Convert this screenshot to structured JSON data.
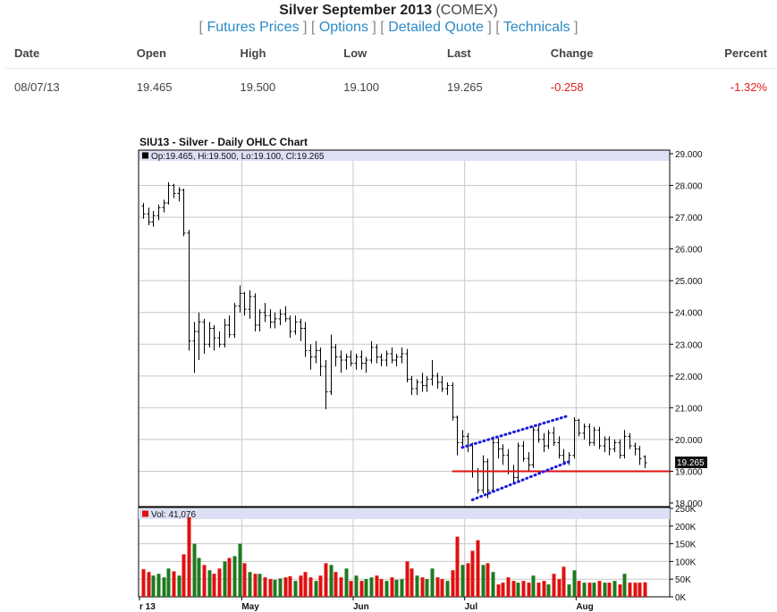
{
  "header": {
    "title_bold": "Silver September 2013",
    "title_rest": "(COMEX)",
    "links": [
      "Futures Prices",
      "Options",
      "Detailed Quote",
      "Technicals"
    ]
  },
  "quote_table": {
    "columns": [
      "Date",
      "Open",
      "High",
      "Low",
      "Last",
      "Change",
      "Percent"
    ],
    "row": {
      "date": "08/07/13",
      "open": "19.465",
      "high": "19.500",
      "low": "19.100",
      "last": "19.265",
      "change": "-0.258",
      "percent": "-1.32%"
    }
  },
  "chart_data": {
    "type": "ohlc",
    "title": "SIU13 - Silver - Daily OHLC Chart",
    "ohlc_label": "Op:19.465, Hi:19.500, Lo:19.100, Cl:19.265",
    "volume_label": "Vol: 41,076",
    "last_price_label": "19.265",
    "price_axis": {
      "min": 18,
      "max": 29,
      "ticks": [
        "18.000",
        "19.000",
        "20.000",
        "21.000",
        "22.000",
        "23.000",
        "24.000",
        "25.000",
        "26.000",
        "27.000",
        "28.000",
        "29.000"
      ]
    },
    "volume_axis": {
      "min": 0,
      "max": 250000,
      "ticks": [
        "0K",
        "50K",
        "100K",
        "150K",
        "200K",
        "250K"
      ]
    },
    "x_axis_labels": [
      "r 13",
      "May",
      "Jun",
      "Jul",
      "Aug"
    ],
    "colors": {
      "up_volume": "#1e7a1e",
      "down_volume": "#e01010",
      "support_line": "#e01010",
      "channel": "#1a1ae0",
      "label_band": "#dde0f5"
    },
    "bars": [
      {
        "o": 27.35,
        "h": 27.45,
        "l": 26.95,
        "c": 27.1,
        "v": 78000
      },
      {
        "o": 27.1,
        "h": 27.3,
        "l": 26.75,
        "c": 26.85,
        "v": 70000
      },
      {
        "o": 26.85,
        "h": 27.2,
        "l": 26.7,
        "c": 27.05,
        "v": 60000
      },
      {
        "o": 27.05,
        "h": 27.4,
        "l": 26.9,
        "c": 27.3,
        "v": 65000
      },
      {
        "o": 27.3,
        "h": 27.55,
        "l": 27.15,
        "c": 27.45,
        "v": 55000
      },
      {
        "o": 27.45,
        "h": 28.1,
        "l": 27.4,
        "c": 28.0,
        "v": 80000
      },
      {
        "o": 28.0,
        "h": 28.05,
        "l": 27.6,
        "c": 27.75,
        "v": 72000
      },
      {
        "o": 27.75,
        "h": 27.95,
        "l": 27.5,
        "c": 27.85,
        "v": 60000
      },
      {
        "o": 27.85,
        "h": 27.9,
        "l": 26.4,
        "c": 26.5,
        "v": 120000
      },
      {
        "o": 26.5,
        "h": 26.6,
        "l": 22.8,
        "c": 23.1,
        "v": 225000
      },
      {
        "o": 23.1,
        "h": 23.7,
        "l": 22.1,
        "c": 23.4,
        "v": 150000
      },
      {
        "o": 23.4,
        "h": 24.0,
        "l": 22.5,
        "c": 23.7,
        "v": 110000
      },
      {
        "o": 23.7,
        "h": 23.8,
        "l": 22.7,
        "c": 23.0,
        "v": 90000
      },
      {
        "o": 23.0,
        "h": 23.7,
        "l": 22.9,
        "c": 23.5,
        "v": 75000
      },
      {
        "o": 23.5,
        "h": 23.6,
        "l": 22.8,
        "c": 23.2,
        "v": 65000
      },
      {
        "o": 23.2,
        "h": 23.4,
        "l": 22.9,
        "c": 23.0,
        "v": 80000
      },
      {
        "o": 23.0,
        "h": 23.8,
        "l": 22.9,
        "c": 23.6,
        "v": 100000
      },
      {
        "o": 23.6,
        "h": 23.9,
        "l": 23.2,
        "c": 23.3,
        "v": 110000
      },
      {
        "o": 23.3,
        "h": 24.3,
        "l": 23.2,
        "c": 24.2,
        "v": 115000
      },
      {
        "o": 24.2,
        "h": 24.85,
        "l": 24.0,
        "c": 24.6,
        "v": 150000
      },
      {
        "o": 24.6,
        "h": 24.65,
        "l": 23.9,
        "c": 24.1,
        "v": 95000
      },
      {
        "o": 24.1,
        "h": 24.7,
        "l": 23.8,
        "c": 24.5,
        "v": 70000
      },
      {
        "o": 24.5,
        "h": 24.6,
        "l": 23.4,
        "c": 23.6,
        "v": 65000
      },
      {
        "o": 23.6,
        "h": 24.1,
        "l": 23.4,
        "c": 24.0,
        "v": 65000
      },
      {
        "o": 24.0,
        "h": 24.3,
        "l": 23.7,
        "c": 23.9,
        "v": 55000
      },
      {
        "o": 23.9,
        "h": 24.1,
        "l": 23.5,
        "c": 23.7,
        "v": 50000
      },
      {
        "o": 23.7,
        "h": 24.0,
        "l": 23.5,
        "c": 23.8,
        "v": 48000
      },
      {
        "o": 23.8,
        "h": 24.1,
        "l": 23.6,
        "c": 23.95,
        "v": 52000
      },
      {
        "o": 23.95,
        "h": 24.2,
        "l": 23.7,
        "c": 23.8,
        "v": 55000
      },
      {
        "o": 23.8,
        "h": 23.9,
        "l": 23.2,
        "c": 23.4,
        "v": 58000
      },
      {
        "o": 23.4,
        "h": 23.9,
        "l": 23.3,
        "c": 23.7,
        "v": 45000
      },
      {
        "o": 23.7,
        "h": 23.8,
        "l": 23.1,
        "c": 23.5,
        "v": 60000
      },
      {
        "o": 23.5,
        "h": 23.7,
        "l": 22.6,
        "c": 22.8,
        "v": 70000
      },
      {
        "o": 22.8,
        "h": 23.0,
        "l": 22.2,
        "c": 22.6,
        "v": 55000
      },
      {
        "o": 22.6,
        "h": 23.1,
        "l": 22.4,
        "c": 22.8,
        "v": 45000
      },
      {
        "o": 22.8,
        "h": 22.9,
        "l": 22.0,
        "c": 22.3,
        "v": 60000
      },
      {
        "o": 22.3,
        "h": 22.5,
        "l": 20.95,
        "c": 21.5,
        "v": 95000
      },
      {
        "o": 21.5,
        "h": 23.3,
        "l": 21.4,
        "c": 22.9,
        "v": 90000
      },
      {
        "o": 22.9,
        "h": 23.0,
        "l": 22.3,
        "c": 22.6,
        "v": 70000
      },
      {
        "o": 22.6,
        "h": 22.8,
        "l": 22.1,
        "c": 22.5,
        "v": 55000
      },
      {
        "o": 22.5,
        "h": 22.7,
        "l": 22.2,
        "c": 22.6,
        "v": 80000
      },
      {
        "o": 22.6,
        "h": 22.8,
        "l": 22.3,
        "c": 22.4,
        "v": 45000
      },
      {
        "o": 22.4,
        "h": 22.7,
        "l": 22.2,
        "c": 22.6,
        "v": 60000
      },
      {
        "o": 22.6,
        "h": 22.8,
        "l": 22.2,
        "c": 22.4,
        "v": 45000
      },
      {
        "o": 22.4,
        "h": 22.6,
        "l": 22.1,
        "c": 22.5,
        "v": 50000
      },
      {
        "o": 22.5,
        "h": 23.1,
        "l": 22.4,
        "c": 22.9,
        "v": 55000
      },
      {
        "o": 22.9,
        "h": 23.0,
        "l": 22.4,
        "c": 22.6,
        "v": 60000
      },
      {
        "o": 22.6,
        "h": 22.7,
        "l": 22.3,
        "c": 22.5,
        "v": 50000
      },
      {
        "o": 22.5,
        "h": 22.8,
        "l": 22.3,
        "c": 22.7,
        "v": 45000
      },
      {
        "o": 22.7,
        "h": 22.9,
        "l": 22.4,
        "c": 22.5,
        "v": 55000
      },
      {
        "o": 22.5,
        "h": 22.7,
        "l": 22.3,
        "c": 22.6,
        "v": 48000
      },
      {
        "o": 22.6,
        "h": 22.9,
        "l": 22.4,
        "c": 22.7,
        "v": 50000
      },
      {
        "o": 22.7,
        "h": 22.85,
        "l": 21.8,
        "c": 21.9,
        "v": 100000
      },
      {
        "o": 21.9,
        "h": 22.0,
        "l": 21.4,
        "c": 21.6,
        "v": 80000
      },
      {
        "o": 21.6,
        "h": 21.9,
        "l": 21.4,
        "c": 21.8,
        "v": 60000
      },
      {
        "o": 21.8,
        "h": 22.1,
        "l": 21.5,
        "c": 21.7,
        "v": 55000
      },
      {
        "o": 21.7,
        "h": 22.0,
        "l": 21.5,
        "c": 21.9,
        "v": 50000
      },
      {
        "o": 21.9,
        "h": 22.5,
        "l": 21.7,
        "c": 22.0,
        "v": 80000
      },
      {
        "o": 22.0,
        "h": 22.1,
        "l": 21.6,
        "c": 21.8,
        "v": 55000
      },
      {
        "o": 21.8,
        "h": 22.0,
        "l": 21.5,
        "c": 21.6,
        "v": 50000
      },
      {
        "o": 21.6,
        "h": 21.8,
        "l": 21.4,
        "c": 21.7,
        "v": 45000
      },
      {
        "o": 21.7,
        "h": 21.8,
        "l": 20.6,
        "c": 20.7,
        "v": 75000
      },
      {
        "o": 20.7,
        "h": 20.75,
        "l": 19.5,
        "c": 19.9,
        "v": 170000
      },
      {
        "o": 19.9,
        "h": 20.3,
        "l": 19.8,
        "c": 20.1,
        "v": 90000
      },
      {
        "o": 20.1,
        "h": 20.2,
        "l": 19.6,
        "c": 19.8,
        "v": 95000
      },
      {
        "o": 19.8,
        "h": 19.9,
        "l": 18.8,
        "c": 19.0,
        "v": 130000
      },
      {
        "o": 19.0,
        "h": 19.1,
        "l": 18.3,
        "c": 18.4,
        "v": 160000
      },
      {
        "o": 18.4,
        "h": 19.5,
        "l": 18.3,
        "c": 19.3,
        "v": 90000
      },
      {
        "o": 19.3,
        "h": 19.4,
        "l": 18.15,
        "c": 18.4,
        "v": 95000
      },
      {
        "o": 18.4,
        "h": 20.1,
        "l": 18.35,
        "c": 19.9,
        "v": 70000
      },
      {
        "o": 19.9,
        "h": 20.05,
        "l": 19.4,
        "c": 19.7,
        "v": 35000
      },
      {
        "o": 19.7,
        "h": 19.85,
        "l": 19.2,
        "c": 19.5,
        "v": 40000
      },
      {
        "o": 19.5,
        "h": 19.7,
        "l": 18.9,
        "c": 19.0,
        "v": 55000
      },
      {
        "o": 19.0,
        "h": 19.2,
        "l": 18.6,
        "c": 18.8,
        "v": 45000
      },
      {
        "o": 18.8,
        "h": 19.9,
        "l": 18.7,
        "c": 19.8,
        "v": 40000
      },
      {
        "o": 19.8,
        "h": 19.95,
        "l": 19.3,
        "c": 19.4,
        "v": 45000
      },
      {
        "o": 19.4,
        "h": 19.6,
        "l": 19.0,
        "c": 19.2,
        "v": 40000
      },
      {
        "o": 19.2,
        "h": 20.4,
        "l": 19.1,
        "c": 20.3,
        "v": 60000
      },
      {
        "o": 20.3,
        "h": 20.5,
        "l": 19.9,
        "c": 20.0,
        "v": 40000
      },
      {
        "o": 20.0,
        "h": 20.2,
        "l": 19.6,
        "c": 19.8,
        "v": 45000
      },
      {
        "o": 19.8,
        "h": 20.3,
        "l": 19.7,
        "c": 20.2,
        "v": 35000
      },
      {
        "o": 20.2,
        "h": 20.4,
        "l": 19.8,
        "c": 19.9,
        "v": 65000
      },
      {
        "o": 19.9,
        "h": 20.1,
        "l": 19.4,
        "c": 19.5,
        "v": 50000
      },
      {
        "o": 19.5,
        "h": 19.7,
        "l": 19.2,
        "c": 19.3,
        "v": 85000
      },
      {
        "o": 19.3,
        "h": 19.6,
        "l": 19.2,
        "c": 19.5,
        "v": 35000
      },
      {
        "o": 19.5,
        "h": 20.7,
        "l": 19.4,
        "c": 20.6,
        "v": 75000
      },
      {
        "o": 20.6,
        "h": 20.65,
        "l": 20.1,
        "c": 20.2,
        "v": 45000
      },
      {
        "o": 20.2,
        "h": 20.5,
        "l": 20.0,
        "c": 20.4,
        "v": 40000
      },
      {
        "o": 20.4,
        "h": 20.5,
        "l": 19.8,
        "c": 19.9,
        "v": 40000
      },
      {
        "o": 19.9,
        "h": 20.4,
        "l": 19.8,
        "c": 20.3,
        "v": 40000
      },
      {
        "o": 20.3,
        "h": 20.4,
        "l": 19.7,
        "c": 19.8,
        "v": 45000
      },
      {
        "o": 19.8,
        "h": 20.1,
        "l": 19.6,
        "c": 20.0,
        "v": 40000
      },
      {
        "o": 20.0,
        "h": 20.1,
        "l": 19.5,
        "c": 19.7,
        "v": 40000
      },
      {
        "o": 19.7,
        "h": 20.0,
        "l": 19.6,
        "c": 19.9,
        "v": 45000
      },
      {
        "o": 19.9,
        "h": 20.0,
        "l": 19.4,
        "c": 19.5,
        "v": 35000
      },
      {
        "o": 19.5,
        "h": 20.3,
        "l": 19.4,
        "c": 20.1,
        "v": 65000
      },
      {
        "o": 20.1,
        "h": 20.2,
        "l": 19.7,
        "c": 19.8,
        "v": 40000
      },
      {
        "o": 19.8,
        "h": 19.9,
        "l": 19.5,
        "c": 19.7,
        "v": 40000
      },
      {
        "o": 19.7,
        "h": 19.8,
        "l": 19.2,
        "c": 19.4,
        "v": 40000
      },
      {
        "o": 19.465,
        "h": 19.5,
        "l": 19.1,
        "c": 19.265,
        "v": 41076
      }
    ],
    "support_level": 19.0,
    "support_from_bar": 61,
    "channel_upper": [
      {
        "bar": 63,
        "price": 19.75
      },
      {
        "bar": 84,
        "price": 20.75
      }
    ],
    "channel_lower": [
      {
        "bar": 65,
        "price": 18.1
      },
      {
        "bar": 84,
        "price": 19.3
      }
    ]
  }
}
